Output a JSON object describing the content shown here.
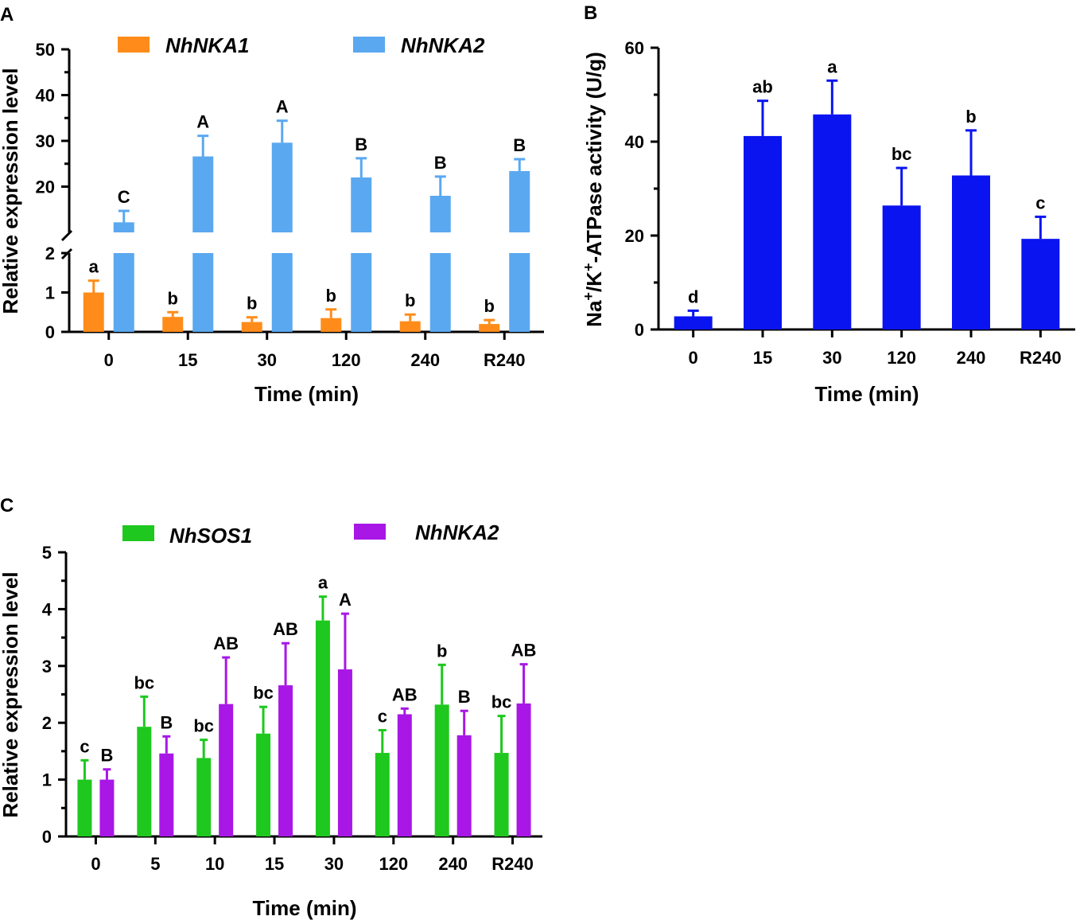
{
  "figure": {
    "panels": [
      "A",
      "B",
      "C"
    ]
  },
  "chart_data": [
    {
      "panel": "A",
      "type": "bar",
      "xlabel": "Time (min)",
      "ylabel": "Relative expression level",
      "categories": [
        "0",
        "15",
        "30",
        "120",
        "240",
        "R240"
      ],
      "y_axis_break": true,
      "ylim_lower": [
        0,
        2
      ],
      "ylim_upper": [
        10,
        50
      ],
      "yticks_lower": [
        "0",
        "1",
        "2"
      ],
      "yticks_upper": [
        "20",
        "30",
        "40",
        "50"
      ],
      "series": [
        {
          "name": "NhNKA1",
          "color": "#FF8C1A",
          "values": [
            1.0,
            0.38,
            0.25,
            0.35,
            0.27,
            0.2
          ],
          "errors": [
            0.3,
            0.12,
            0.12,
            0.22,
            0.17,
            0.1
          ],
          "letters": [
            "a",
            "b",
            "b",
            "b",
            "b",
            "b"
          ]
        },
        {
          "name": "NhNKA2",
          "color": "#5AA8F0",
          "values": [
            12.2,
            26.6,
            29.6,
            22.0,
            18.0,
            23.4
          ],
          "errors": [
            2.5,
            4.5,
            4.8,
            4.2,
            4.2,
            2.6
          ],
          "letters": [
            "C",
            "A",
            "A",
            "B",
            "B",
            "B"
          ]
        }
      ]
    },
    {
      "panel": "B",
      "type": "bar",
      "xlabel": "Time (min)",
      "ylabel_parts": [
        "Na",
        "+",
        "/K",
        "+",
        "-ATPase activity (U/g)"
      ],
      "categories": [
        "0",
        "15",
        "30",
        "120",
        "240",
        "R240"
      ],
      "ylim": [
        0,
        60
      ],
      "yticks": [
        "0",
        "20",
        "40",
        "60"
      ],
      "series": [
        {
          "name": "Na+/K+-ATPase activity",
          "color": "#0A14F0",
          "values": [
            2.8,
            41.2,
            45.8,
            26.4,
            32.8,
            19.3
          ],
          "errors": [
            1.2,
            7.5,
            7.2,
            8.0,
            9.6,
            4.7
          ],
          "letters": [
            "d",
            "ab",
            "a",
            "bc",
            "b",
            "c"
          ]
        }
      ]
    },
    {
      "panel": "C",
      "type": "bar",
      "xlabel": "Time (min)",
      "ylabel": "Relative expression level",
      "categories": [
        "0",
        "5",
        "10",
        "15",
        "30",
        "120",
        "240",
        "R240"
      ],
      "ylim": [
        0,
        5
      ],
      "yticks": [
        "0",
        "1",
        "2",
        "3",
        "4",
        "5"
      ],
      "series": [
        {
          "name": "NhSOS1",
          "color": "#1EC81E",
          "values": [
            1.0,
            1.93,
            1.38,
            1.81,
            3.8,
            1.47,
            2.32,
            1.47
          ],
          "errors": [
            0.34,
            0.53,
            0.32,
            0.47,
            0.42,
            0.4,
            0.7,
            0.65
          ],
          "letters": [
            "c",
            "bc",
            "bc",
            "bc",
            "a",
            "c",
            "b",
            "bc"
          ]
        },
        {
          "name": "NhNKA2",
          "color": "#A817E6",
          "values": [
            1.0,
            1.46,
            2.33,
            2.66,
            2.94,
            2.15,
            1.78,
            2.34
          ],
          "errors": [
            0.18,
            0.3,
            0.82,
            0.74,
            0.98,
            0.1,
            0.43,
            0.69
          ],
          "letters": [
            "B",
            "B",
            "AB",
            "AB",
            "A",
            "AB",
            "B",
            "AB"
          ]
        }
      ]
    }
  ]
}
